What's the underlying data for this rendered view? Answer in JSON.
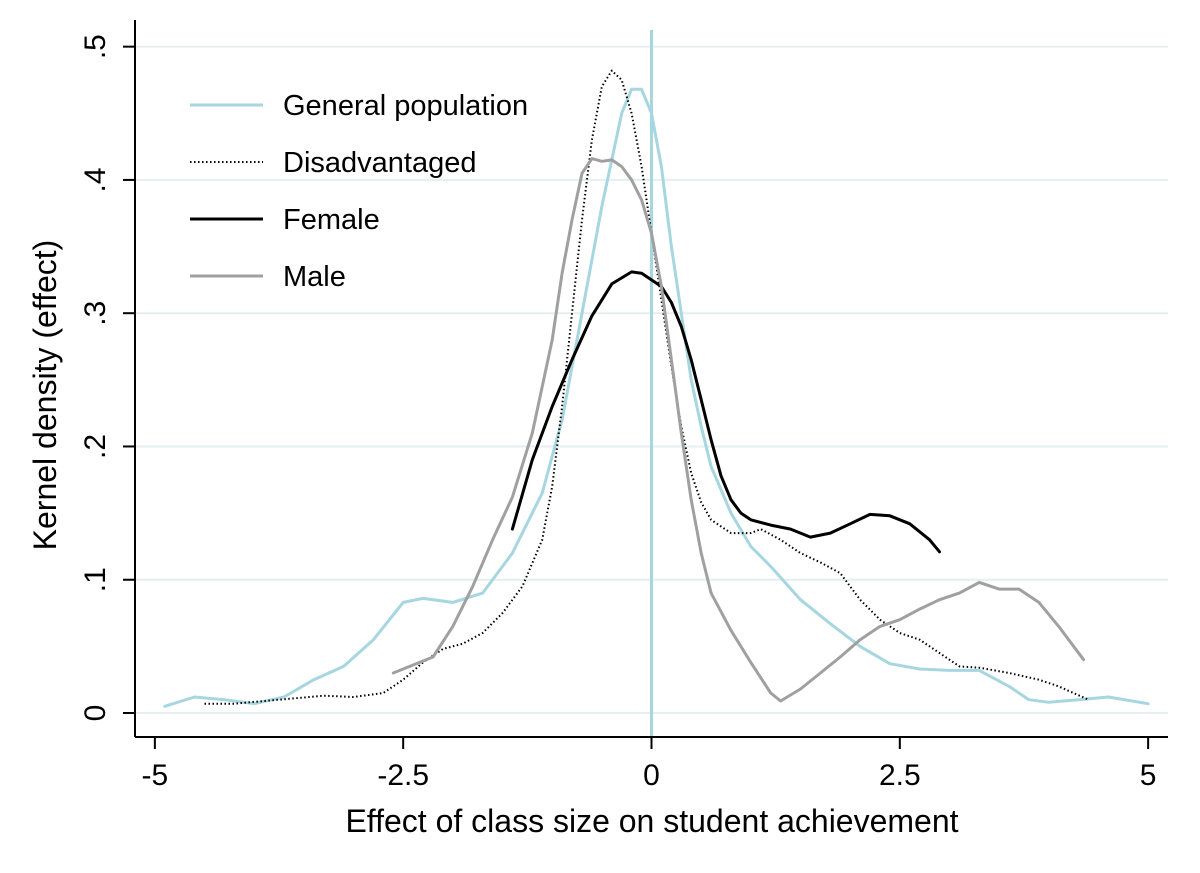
{
  "chart_data": {
    "type": "line",
    "title": "",
    "xlabel": "Effect of class size on student achievement",
    "ylabel": "Kernel density (effect)",
    "xlim": [
      -5.2,
      5.2
    ],
    "ylim": [
      -0.018,
      0.52
    ],
    "xticks": [
      -5,
      -2.5,
      0,
      2.5,
      5
    ],
    "xtick_labels": [
      "-5",
      "-2.5",
      "0",
      "2.5",
      "5"
    ],
    "yticks": [
      0,
      0.1,
      0.2,
      0.3,
      0.4,
      0.5
    ],
    "ytick_labels": [
      "0",
      ".1",
      ".2",
      ".3",
      ".4",
      ".5"
    ],
    "grid": "horizontal",
    "reference_line": {
      "x": 0,
      "color": "#a6d6e0"
    },
    "legend_position": "top-left",
    "series": [
      {
        "name": "General population",
        "color": "#a6d6e0",
        "dash": "solid",
        "points": [
          [
            -4.9,
            0.005
          ],
          [
            -4.6,
            0.012
          ],
          [
            -4.3,
            0.01
          ],
          [
            -4.0,
            0.007
          ],
          [
            -3.7,
            0.012
          ],
          [
            -3.4,
            0.025
          ],
          [
            -3.1,
            0.035
          ],
          [
            -2.8,
            0.055
          ],
          [
            -2.5,
            0.083
          ],
          [
            -2.3,
            0.086
          ],
          [
            -2.0,
            0.083
          ],
          [
            -1.7,
            0.09
          ],
          [
            -1.4,
            0.12
          ],
          [
            -1.1,
            0.165
          ],
          [
            -0.9,
            0.22
          ],
          [
            -0.7,
            0.3
          ],
          [
            -0.5,
            0.38
          ],
          [
            -0.3,
            0.45
          ],
          [
            -0.2,
            0.468
          ],
          [
            -0.1,
            0.468
          ],
          [
            0.0,
            0.45
          ],
          [
            0.1,
            0.41
          ],
          [
            0.2,
            0.35
          ],
          [
            0.3,
            0.3
          ],
          [
            0.4,
            0.25
          ],
          [
            0.5,
            0.215
          ],
          [
            0.6,
            0.185
          ],
          [
            0.8,
            0.15
          ],
          [
            1.0,
            0.125
          ],
          [
            1.2,
            0.11
          ],
          [
            1.5,
            0.085
          ],
          [
            1.8,
            0.067
          ],
          [
            2.1,
            0.05
          ],
          [
            2.4,
            0.037
          ],
          [
            2.7,
            0.033
          ],
          [
            3.0,
            0.032
          ],
          [
            3.3,
            0.032
          ],
          [
            3.6,
            0.02
          ],
          [
            3.8,
            0.01
          ],
          [
            4.0,
            0.008
          ],
          [
            4.3,
            0.01
          ],
          [
            4.6,
            0.012
          ],
          [
            5.0,
            0.007
          ]
        ]
      },
      {
        "name": "Disadvantaged",
        "color": "#000000",
        "dash": "dotted",
        "points": [
          [
            -4.5,
            0.007
          ],
          [
            -4.2,
            0.007
          ],
          [
            -3.9,
            0.009
          ],
          [
            -3.6,
            0.011
          ],
          [
            -3.3,
            0.013
          ],
          [
            -3.0,
            0.012
          ],
          [
            -2.7,
            0.015
          ],
          [
            -2.5,
            0.025
          ],
          [
            -2.3,
            0.038
          ],
          [
            -2.1,
            0.048
          ],
          [
            -1.9,
            0.052
          ],
          [
            -1.7,
            0.06
          ],
          [
            -1.5,
            0.075
          ],
          [
            -1.3,
            0.095
          ],
          [
            -1.1,
            0.13
          ],
          [
            -1.0,
            0.17
          ],
          [
            -0.9,
            0.23
          ],
          [
            -0.8,
            0.3
          ],
          [
            -0.7,
            0.37
          ],
          [
            -0.6,
            0.43
          ],
          [
            -0.5,
            0.47
          ],
          [
            -0.4,
            0.482
          ],
          [
            -0.3,
            0.475
          ],
          [
            -0.2,
            0.45
          ],
          [
            -0.1,
            0.41
          ],
          [
            0.0,
            0.36
          ],
          [
            0.1,
            0.31
          ],
          [
            0.2,
            0.26
          ],
          [
            0.3,
            0.215
          ],
          [
            0.4,
            0.18
          ],
          [
            0.5,
            0.158
          ],
          [
            0.6,
            0.145
          ],
          [
            0.8,
            0.135
          ],
          [
            1.0,
            0.135
          ],
          [
            1.1,
            0.138
          ],
          [
            1.3,
            0.13
          ],
          [
            1.5,
            0.12
          ],
          [
            1.7,
            0.113
          ],
          [
            1.9,
            0.105
          ],
          [
            2.1,
            0.085
          ],
          [
            2.3,
            0.07
          ],
          [
            2.5,
            0.06
          ],
          [
            2.7,
            0.055
          ],
          [
            2.9,
            0.045
          ],
          [
            3.1,
            0.035
          ],
          [
            3.3,
            0.034
          ],
          [
            3.6,
            0.03
          ],
          [
            3.9,
            0.025
          ],
          [
            4.1,
            0.02
          ],
          [
            4.4,
            0.01
          ]
        ]
      },
      {
        "name": "Female",
        "color": "#000000",
        "dash": "solid",
        "points": [
          [
            -1.4,
            0.138
          ],
          [
            -1.2,
            0.19
          ],
          [
            -1.0,
            0.23
          ],
          [
            -0.8,
            0.265
          ],
          [
            -0.6,
            0.298
          ],
          [
            -0.4,
            0.322
          ],
          [
            -0.2,
            0.331
          ],
          [
            -0.1,
            0.33
          ],
          [
            0.0,
            0.325
          ],
          [
            0.1,
            0.32
          ],
          [
            0.2,
            0.308
          ],
          [
            0.3,
            0.29
          ],
          [
            0.4,
            0.265
          ],
          [
            0.5,
            0.235
          ],
          [
            0.6,
            0.205
          ],
          [
            0.7,
            0.178
          ],
          [
            0.8,
            0.16
          ],
          [
            0.9,
            0.15
          ],
          [
            1.0,
            0.145
          ],
          [
            1.2,
            0.141
          ],
          [
            1.4,
            0.138
          ],
          [
            1.6,
            0.132
          ],
          [
            1.8,
            0.135
          ],
          [
            2.0,
            0.142
          ],
          [
            2.2,
            0.149
          ],
          [
            2.4,
            0.148
          ],
          [
            2.6,
            0.142
          ],
          [
            2.8,
            0.13
          ],
          [
            2.9,
            0.121
          ]
        ]
      },
      {
        "name": "Male",
        "color": "#a0a0a0",
        "dash": "solid",
        "points": [
          [
            -2.6,
            0.03
          ],
          [
            -2.4,
            0.036
          ],
          [
            -2.2,
            0.042
          ],
          [
            -2.0,
            0.065
          ],
          [
            -1.8,
            0.095
          ],
          [
            -1.6,
            0.13
          ],
          [
            -1.4,
            0.162
          ],
          [
            -1.2,
            0.21
          ],
          [
            -1.0,
            0.28
          ],
          [
            -0.9,
            0.33
          ],
          [
            -0.8,
            0.37
          ],
          [
            -0.7,
            0.405
          ],
          [
            -0.6,
            0.416
          ],
          [
            -0.5,
            0.414
          ],
          [
            -0.4,
            0.415
          ],
          [
            -0.3,
            0.41
          ],
          [
            -0.2,
            0.4
          ],
          [
            -0.1,
            0.385
          ],
          [
            0.0,
            0.36
          ],
          [
            0.1,
            0.32
          ],
          [
            0.2,
            0.265
          ],
          [
            0.3,
            0.21
          ],
          [
            0.4,
            0.16
          ],
          [
            0.5,
            0.12
          ],
          [
            0.6,
            0.09
          ],
          [
            0.8,
            0.062
          ],
          [
            1.0,
            0.038
          ],
          [
            1.2,
            0.015
          ],
          [
            1.3,
            0.009
          ],
          [
            1.5,
            0.018
          ],
          [
            1.7,
            0.03
          ],
          [
            1.9,
            0.042
          ],
          [
            2.1,
            0.055
          ],
          [
            2.3,
            0.065
          ],
          [
            2.5,
            0.07
          ],
          [
            2.7,
            0.078
          ],
          [
            2.9,
            0.085
          ],
          [
            3.1,
            0.09
          ],
          [
            3.3,
            0.098
          ],
          [
            3.5,
            0.093
          ],
          [
            3.7,
            0.093
          ],
          [
            3.9,
            0.083
          ],
          [
            4.1,
            0.065
          ],
          [
            4.35,
            0.04
          ]
        ]
      }
    ]
  }
}
